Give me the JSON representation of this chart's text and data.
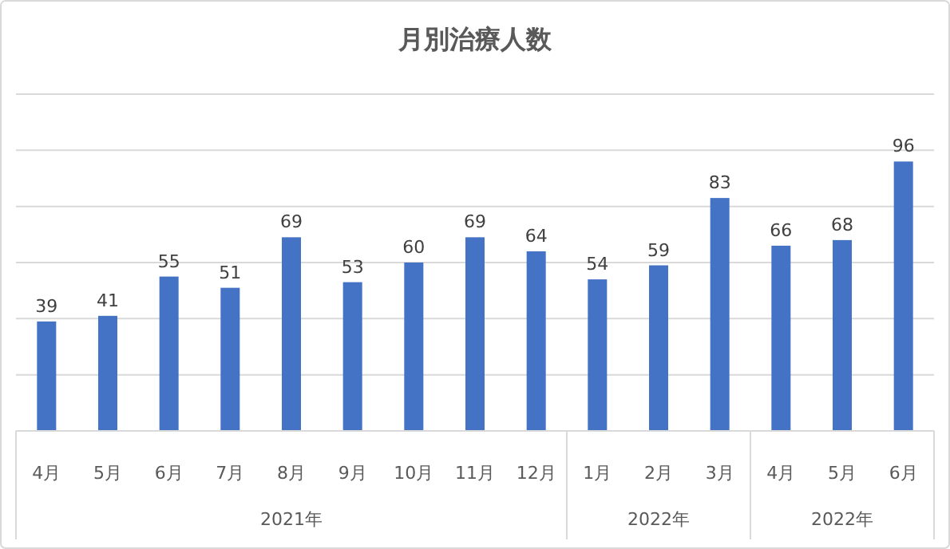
{
  "chart_data": {
    "type": "bar",
    "title": "月別治療人数",
    "categories": [
      "4月",
      "5月",
      "6月",
      "7月",
      "8月",
      "9月",
      "10月",
      "11月",
      "12月",
      "1月",
      "2月",
      "3月",
      "4月",
      "5月",
      "6月"
    ],
    "values": [
      39,
      41,
      55,
      51,
      69,
      53,
      60,
      69,
      64,
      54,
      59,
      83,
      66,
      68,
      96
    ],
    "color": "#4472c4",
    "data_labels": true,
    "grid": "y",
    "ylim": [
      0,
      120
    ],
    "yticks": [
      {
        "value": 0,
        "label": null
      },
      {
        "value": 20,
        "label": null
      },
      {
        "value": 40,
        "label": null
      },
      {
        "value": 60,
        "label": null
      },
      {
        "value": 80,
        "label": null
      },
      {
        "value": 100,
        "label": null
      },
      {
        "value": 120,
        "label": null
      }
    ],
    "tick_labels": "x",
    "annotations": [
      "2021年",
      "2022年",
      "2022年"
    ]
  }
}
